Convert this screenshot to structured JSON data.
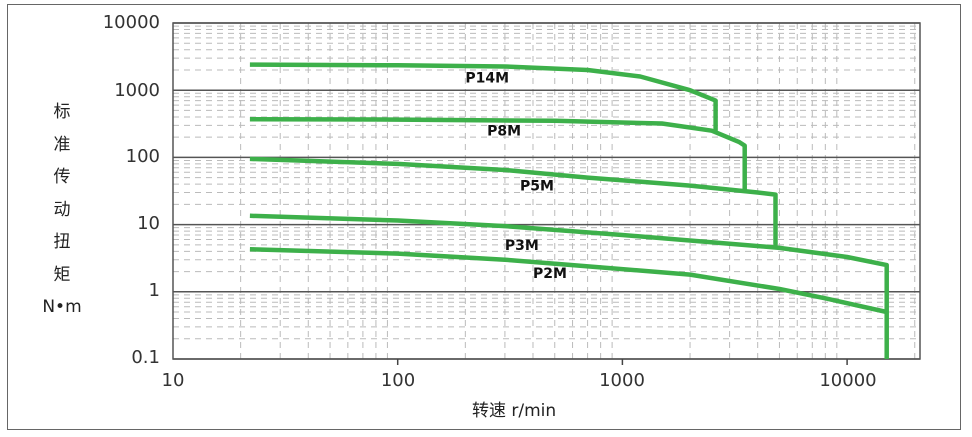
{
  "chart_data": {
    "type": "line",
    "title": "",
    "xlabel": "转速 r/min",
    "ylabel": "标准传动扭矩 N•m",
    "xscale": "log",
    "yscale": "log",
    "xlim": [
      10,
      20000
    ],
    "ylim": [
      0.1,
      10000
    ],
    "x_ticks": [
      "10",
      "100",
      "1000",
      "10000"
    ],
    "y_ticks": [
      "10000",
      "1000",
      "100",
      "10",
      "1",
      "0.1"
    ],
    "grid": true,
    "legend": "inline labels on curves",
    "line_color": "#3db04a",
    "series": [
      {
        "name": "P14M",
        "x": [
          22,
          100,
          300,
          700,
          1200,
          2000,
          2600,
          2600
        ],
        "y": [
          2400,
          2350,
          2250,
          2000,
          1600,
          1000,
          700,
          250
        ]
      },
      {
        "name": "P8M",
        "x": [
          22,
          100,
          500,
          1500,
          2500,
          3300,
          3500,
          3500
        ],
        "y": [
          370,
          365,
          350,
          320,
          250,
          170,
          150,
          30
        ]
      },
      {
        "name": "P5M",
        "x": [
          22,
          100,
          300,
          700,
          2000,
          4000,
          4800,
          4800
        ],
        "y": [
          95,
          80,
          65,
          50,
          38,
          30,
          28,
          4.5
        ]
      },
      {
        "name": "P3M",
        "x": [
          22,
          100,
          300,
          1000,
          3000,
          5000,
          10000,
          15000,
          15000
        ],
        "y": [
          13.5,
          11.5,
          9.5,
          7,
          5.2,
          4.5,
          3.3,
          2.5,
          0.1
        ]
      },
      {
        "name": "P2M",
        "x": [
          22,
          100,
          300,
          600,
          2000,
          5000,
          8000,
          15000
        ],
        "y": [
          4.3,
          3.7,
          3.0,
          2.5,
          1.8,
          1.1,
          0.8,
          0.5
        ]
      }
    ],
    "annotations": [
      {
        "text": "P14M",
        "x": 200,
        "y": 1300
      },
      {
        "text": "P8M",
        "x": 250,
        "y": 210
      },
      {
        "text": "P5M",
        "x": 350,
        "y": 32
      },
      {
        "text": "P3M",
        "x": 300,
        "y": 4.2
      },
      {
        "text": "P2M",
        "x": 400,
        "y": 1.6
      }
    ]
  },
  "axis": {
    "ylabel_chars": [
      "标",
      "准",
      "传",
      "动",
      "扭",
      "矩",
      "N•m"
    ],
    "xlabel": "转速 r/min",
    "y_ticks": [
      "10000",
      "1000",
      "100",
      "10",
      "1",
      "0.1"
    ],
    "x_ticks": [
      "10",
      "100",
      "1000",
      "10000"
    ]
  }
}
